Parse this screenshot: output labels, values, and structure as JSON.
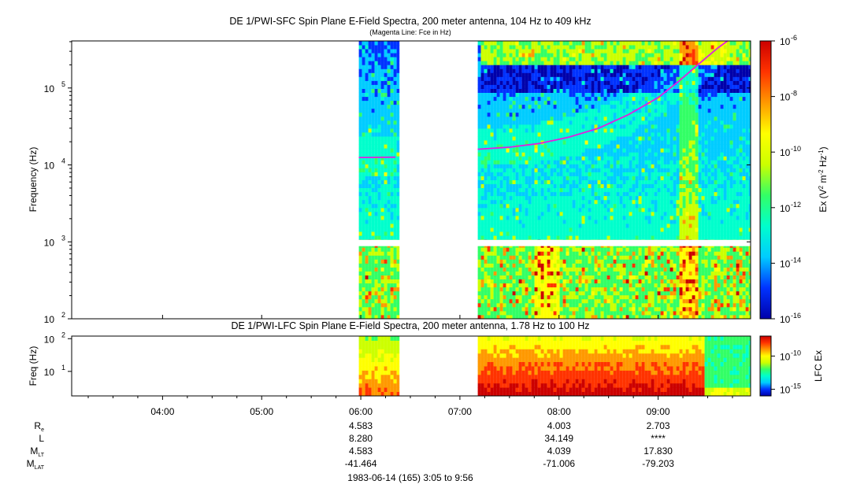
{
  "chart_data": [
    {
      "type": "heatmap",
      "title": "DE 1/PWI-SFC  Spin Plane E-Field Spectra, 200 meter antenna, 104 Hz to 409 kHz",
      "subtitle": "(Magenta Line: Fce in Hz)",
      "xlabel": "",
      "ylabel": "Frequency (Hz)",
      "yscale": "log",
      "ylim": [
        100,
        409000
      ],
      "y_ticks": [
        {
          "exp": "2",
          "v": 100
        },
        {
          "exp": "3",
          "v": 1000
        },
        {
          "exp": "4",
          "v": 10000
        },
        {
          "exp": "5",
          "v": 100000
        }
      ],
      "colorbar": {
        "label_parts": [
          "Ex (V",
          "2",
          " m",
          "-2",
          " Hz",
          "-1",
          ")"
        ],
        "scale": "log",
        "range": [
          1e-16,
          1e-06
        ],
        "ticks": [
          {
            "exp": "-6",
            "v": 1e-06
          },
          {
            "exp": "-8",
            "v": 1e-08
          },
          {
            "exp": "-10",
            "v": 1e-10
          },
          {
            "exp": "-12",
            "v": 1e-12
          },
          {
            "exp": "-14",
            "v": 1e-14
          },
          {
            "exp": "-16",
            "v": 1e-16
          }
        ],
        "colors": [
          "#0000aa",
          "#0033ff",
          "#00ccff",
          "#00ffcc",
          "#33ff66",
          "#ccff00",
          "#ffff00",
          "#ff9900",
          "#ff3300",
          "#cc0000"
        ]
      },
      "data_segments_hours": [
        [
          5.98,
          6.39
        ],
        [
          7.18,
          9.93
        ]
      ],
      "magenta_line": {
        "name": "Fce",
        "color": "#e020e0",
        "segments": [
          [
            [
              5.98,
              12500
            ],
            [
              6.35,
              12600
            ]
          ],
          [
            [
              7.18,
              16000
            ],
            [
              7.5,
              17000
            ],
            [
              7.8,
              19000
            ],
            [
              8.1,
              23000
            ],
            [
              8.4,
              30000
            ],
            [
              8.7,
              45000
            ],
            [
              9.0,
              75000
            ],
            [
              9.2,
              120000
            ],
            [
              9.4,
              200000
            ],
            [
              9.6,
              330000
            ],
            [
              9.7,
              409000
            ]
          ]
        ]
      },
      "gap_band_hz": [
        880,
        1060
      ]
    },
    {
      "type": "heatmap",
      "title": "DE 1/PWI-LFC  Spin Plane E-Field Spectra, 200 meter antenna, 1.78 Hz to 100 Hz",
      "ylabel": "Freq (Hz)",
      "yscale": "log",
      "ylim": [
        1.78,
        120
      ],
      "y_ticks": [
        {
          "exp": "2",
          "v": 100
        },
        {
          "exp": "1",
          "v": 10
        }
      ],
      "colorbar": {
        "label": "LFC Ex",
        "scale": "log",
        "range": [
          1e-16,
          1e-07
        ],
        "ticks": [
          {
            "exp": "-10",
            "v": 1e-10
          },
          {
            "exp": "-15",
            "v": 1e-15
          }
        ],
        "colors": [
          "#0000aa",
          "#0033ff",
          "#00ccff",
          "#00ffcc",
          "#33ff66",
          "#ccff00",
          "#ffff00",
          "#ff9900",
          "#ff3300",
          "#cc0000"
        ]
      },
      "data_segments_hours": [
        [
          5.98,
          6.39
        ],
        [
          7.18,
          9.93
        ]
      ]
    }
  ],
  "time_axis": {
    "range_hours": [
      3.083,
      9.933
    ],
    "tick_labels": [
      {
        "h": 4,
        "label": "04:00"
      },
      {
        "h": 5,
        "label": "05:00"
      },
      {
        "h": 6,
        "label": "06:00"
      },
      {
        "h": 7,
        "label": "07:00"
      },
      {
        "h": 8,
        "label": "08:00"
      },
      {
        "h": 9,
        "label": "09:00"
      }
    ]
  },
  "ephemeris": {
    "rows": [
      {
        "label": "R",
        "sub": "e",
        "values": [
          {
            "h": 6,
            "v": "4.583"
          },
          {
            "h": 8,
            "v": "4.003"
          },
          {
            "h": 9,
            "v": "2.703"
          }
        ]
      },
      {
        "label": "L",
        "sub": "",
        "values": [
          {
            "h": 6,
            "v": "8.280"
          },
          {
            "h": 8,
            "v": "34.149"
          },
          {
            "h": 9,
            "v": "****"
          }
        ]
      },
      {
        "label": "M",
        "sub": "LT",
        "values": [
          {
            "h": 6,
            "v": "4.583"
          },
          {
            "h": 8,
            "v": "4.039"
          },
          {
            "h": 9,
            "v": "17.830"
          }
        ]
      },
      {
        "label": "M",
        "sub": "LAT",
        "values": [
          {
            "h": 6,
            "v": "-41.464"
          },
          {
            "h": 8,
            "v": "-71.006"
          },
          {
            "h": 9,
            "v": "-79.203"
          }
        ]
      }
    ]
  },
  "footer": "1983-06-14 (165) 3:05 to 9:56"
}
